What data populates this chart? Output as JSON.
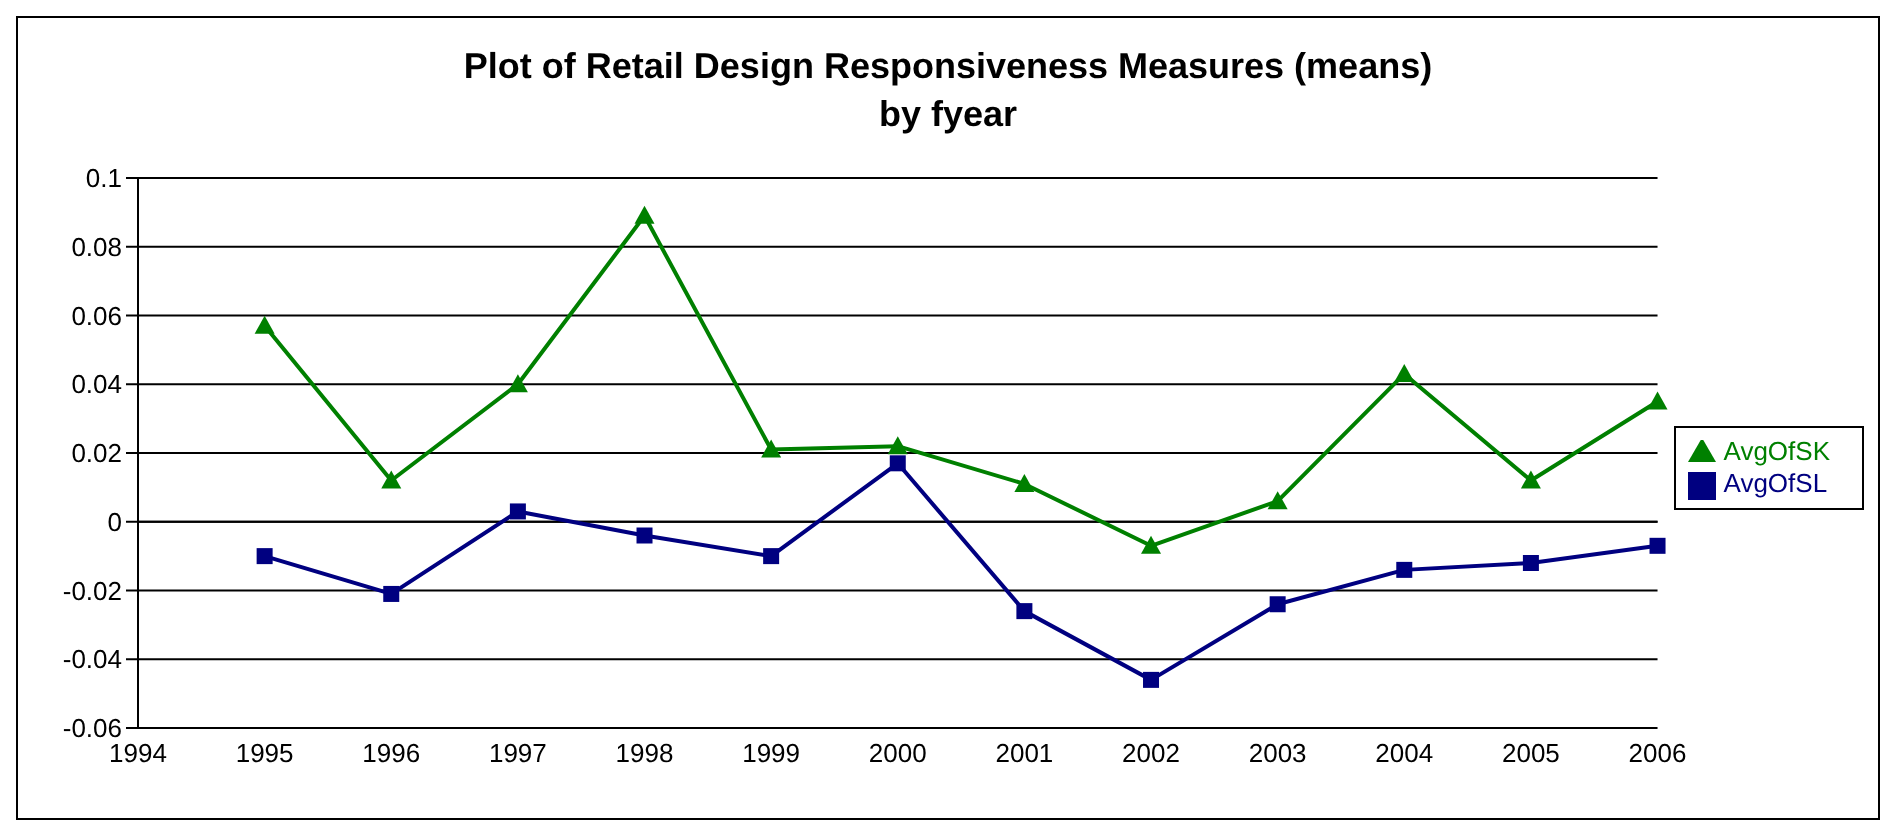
{
  "chart_data": {
    "type": "line",
    "title": "Plot of Retail Design Responsiveness Measures (means)\nby fyear",
    "categories": [
      "1994",
      "1995",
      "1996",
      "1997",
      "1998",
      "1999",
      "2000",
      "2001",
      "2002",
      "2003",
      "2004",
      "2005",
      "2006"
    ],
    "series": [
      {
        "name": "AvgOfSL",
        "color": "#000080",
        "marker": "square",
        "values": [
          null,
          -0.01,
          -0.021,
          0.003,
          -0.004,
          -0.01,
          0.017,
          -0.026,
          -0.046,
          -0.024,
          -0.014,
          -0.012,
          -0.007
        ]
      },
      {
        "name": "AvgOfSK",
        "color": "#008000",
        "marker": "triangle",
        "values": [
          null,
          0.057,
          0.012,
          0.04,
          0.089,
          0.021,
          0.022,
          0.011,
          -0.007,
          0.006,
          0.043,
          0.012,
          0.035
        ]
      }
    ],
    "ylim": [
      -0.06,
      0.1
    ],
    "yticks": [
      -0.06,
      -0.04,
      -0.02,
      0,
      0.02,
      0.04,
      0.06,
      0.08,
      0.1
    ],
    "grid": "y",
    "legend": "right",
    "line_style": "solid"
  }
}
